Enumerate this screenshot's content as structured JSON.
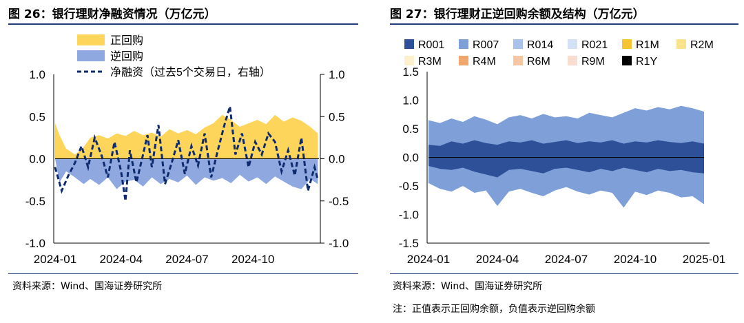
{
  "left": {
    "title": "图 26：银行理财净融资情况（万亿元）",
    "source": "资料来源：Wind、国海证券研究所",
    "legend": [
      "正回购",
      "逆回购",
      "净融资（过去5个交易日，右轴）"
    ],
    "colors": {
      "repo": "#fdd55a",
      "reverse": "#8fa8e0",
      "net": "#0d2b6e"
    },
    "chart_data": {
      "type": "area",
      "x_ticks": [
        "2024-01",
        "2024-04",
        "2024-07",
        "2024-10"
      ],
      "y_ticks": [
        "1.0",
        "0.5",
        "0.0",
        "-0.5",
        "-1.0"
      ],
      "y2_ticks": [
        "1.0",
        "0.5",
        "0.0",
        "-0.5",
        "-1.0"
      ],
      "ylim": [
        -1.0,
        1.0
      ],
      "x_range": [
        0,
        12
      ],
      "series": [
        {
          "name": "正回购",
          "type": "area",
          "x": [
            0,
            0.2,
            0.5,
            0.9,
            1.3,
            1.6,
            2.0,
            2.4,
            2.8,
            3.2,
            3.6,
            4.0,
            4.4,
            4.8,
            5.2,
            5.6,
            6.0,
            6.4,
            6.8,
            7.2,
            7.6,
            8.0,
            8.4,
            8.8,
            9.2,
            9.6,
            10.0,
            10.4,
            10.8,
            11.2,
            11.6,
            11.95
          ],
          "y": [
            0.42,
            0.28,
            0.12,
            0.05,
            0.14,
            0.25,
            0.28,
            0.24,
            0.3,
            0.27,
            0.33,
            0.28,
            0.31,
            0.26,
            0.35,
            0.3,
            0.34,
            0.29,
            0.37,
            0.42,
            0.52,
            0.46,
            0.38,
            0.42,
            0.46,
            0.41,
            0.52,
            0.44,
            0.49,
            0.45,
            0.38,
            0.3
          ]
        },
        {
          "name": "逆回购",
          "type": "area",
          "x": [
            0,
            0.2,
            0.5,
            0.9,
            1.3,
            1.6,
            2.0,
            2.4,
            2.8,
            3.2,
            3.6,
            4.0,
            4.4,
            4.8,
            5.2,
            5.6,
            6.0,
            6.4,
            6.8,
            7.2,
            7.6,
            8.0,
            8.4,
            8.8,
            9.2,
            9.6,
            10.0,
            10.4,
            10.8,
            11.2,
            11.6,
            11.95
          ],
          "y": [
            0.0,
            -0.28,
            -0.15,
            -0.22,
            -0.3,
            -0.24,
            -0.31,
            -0.22,
            -0.36,
            -0.27,
            -0.25,
            -0.33,
            -0.22,
            -0.3,
            -0.24,
            -0.28,
            -0.2,
            -0.31,
            -0.22,
            -0.26,
            -0.23,
            -0.29,
            -0.19,
            -0.27,
            -0.22,
            -0.3,
            -0.21,
            -0.27,
            -0.33,
            -0.36,
            -0.24,
            -0.3
          ]
        },
        {
          "name": "净融资（过去5个交易日，右轴）",
          "type": "line",
          "axis": "right",
          "x": [
            0,
            0.3,
            0.6,
            0.9,
            1.2,
            1.5,
            1.8,
            2.1,
            2.4,
            2.7,
            3.0,
            3.2,
            3.4,
            3.7,
            4.0,
            4.2,
            4.4,
            4.7,
            5.0,
            5.3,
            5.6,
            5.9,
            6.2,
            6.5,
            6.8,
            7.1,
            7.4,
            7.7,
            7.95,
            8.2,
            8.5,
            8.8,
            9.1,
            9.4,
            9.7,
            10.0,
            10.3,
            10.6,
            10.9,
            11.2,
            11.5,
            11.8,
            11.95
          ],
          "y": [
            -0.1,
            -0.38,
            -0.2,
            -0.05,
            0.15,
            -0.1,
            0.25,
            0.05,
            -0.22,
            0.2,
            -0.15,
            -0.5,
            0.1,
            -0.28,
            0.05,
            0.28,
            -0.1,
            0.4,
            -0.3,
            -0.05,
            0.22,
            -0.18,
            0.15,
            -0.08,
            0.3,
            -0.22,
            0.1,
            0.4,
            0.62,
            0.05,
            0.3,
            -0.1,
            0.2,
            0.05,
            0.3,
            0.2,
            -0.15,
            0.1,
            -0.2,
            0.25,
            -0.38,
            -0.1,
            -0.25
          ]
        }
      ]
    }
  },
  "right": {
    "title": "图 27：银行理财正逆回购余额及结构（万亿元）",
    "source": "资料来源：Wind、国海证券研究所",
    "note": "注：正值表示正回购余额，负值表示逆回购余额",
    "legend": [
      "R001",
      "R007",
      "R014",
      "R021",
      "R1M",
      "R2M",
      "R3M",
      "R4M",
      "R6M",
      "R9M",
      "R1Y"
    ],
    "legend_colors": [
      "#2e5099",
      "#7f9fd8",
      "#a9c0e8",
      "#d3e0f5",
      "#f4c530",
      "#fbe38e",
      "#fdf0cc",
      "#f2a56c",
      "#f7c6a3",
      "#f9ded0",
      "#000000"
    ],
    "chart_data": {
      "type": "area",
      "x_ticks": [
        "2024-01",
        "2024-04",
        "2024-07",
        "2024-10",
        "2025-01"
      ],
      "y_ticks": [
        "1.5",
        "1.0",
        "0.5",
        "0.0",
        "-0.5",
        "-1.0",
        "-1.5"
      ],
      "ylim": [
        -1.5,
        1.5
      ],
      "x_range": [
        0,
        12
      ],
      "series": [
        {
          "name": "R001 正回购",
          "x": [
            0,
            0.5,
            1,
            1.5,
            2,
            2.5,
            3,
            3.5,
            4,
            4.5,
            5,
            5.5,
            6,
            6.5,
            7,
            7.5,
            8,
            8.5,
            9,
            9.5,
            10,
            10.5,
            11,
            11.5,
            12
          ],
          "y": [
            0.22,
            0.2,
            0.28,
            0.24,
            0.3,
            0.25,
            0.22,
            0.28,
            0.26,
            0.3,
            0.24,
            0.27,
            0.3,
            0.25,
            0.28,
            0.26,
            0.3,
            0.24,
            0.28,
            0.26,
            0.3,
            0.27,
            0.25,
            0.28,
            0.24
          ]
        },
        {
          "name": "R007 正回购",
          "x": [
            0,
            0.5,
            1,
            1.5,
            2,
            2.5,
            3,
            3.5,
            4,
            4.5,
            5,
            5.5,
            6,
            6.5,
            7,
            7.5,
            8,
            8.5,
            9,
            9.5,
            10,
            10.5,
            11,
            11.5,
            12
          ],
          "y": [
            0.65,
            0.6,
            0.68,
            0.62,
            0.72,
            0.66,
            0.58,
            0.7,
            0.74,
            0.68,
            0.76,
            0.7,
            0.72,
            0.68,
            0.78,
            0.74,
            0.7,
            0.78,
            0.86,
            0.82,
            0.88,
            0.84,
            0.9,
            0.86,
            0.8
          ]
        },
        {
          "name": "R001 逆回购",
          "x": [
            0,
            0.5,
            1,
            1.5,
            2,
            2.5,
            3,
            3.5,
            4,
            4.5,
            5,
            5.5,
            6,
            6.5,
            7,
            7.5,
            8,
            8.5,
            9,
            9.5,
            10,
            10.5,
            11,
            11.5,
            12
          ],
          "y": [
            -0.15,
            -0.2,
            -0.22,
            -0.18,
            -0.25,
            -0.3,
            -0.35,
            -0.22,
            -0.2,
            -0.24,
            -0.28,
            -0.2,
            -0.18,
            -0.22,
            -0.26,
            -0.2,
            -0.24,
            -0.18,
            -0.22,
            -0.26,
            -0.2,
            -0.24,
            -0.22,
            -0.26,
            -0.28
          ]
        },
        {
          "name": "R007 逆回购",
          "x": [
            0,
            0.5,
            1,
            1.5,
            2,
            2.5,
            3,
            3.5,
            4,
            4.5,
            5,
            5.5,
            6,
            6.5,
            7,
            7.5,
            8,
            8.5,
            9,
            9.5,
            10,
            10.5,
            11,
            11.5,
            12
          ],
          "y": [
            -0.45,
            -0.55,
            -0.6,
            -0.5,
            -0.62,
            -0.58,
            -0.85,
            -0.6,
            -0.55,
            -0.62,
            -0.68,
            -0.58,
            -0.52,
            -0.6,
            -0.65,
            -0.58,
            -0.62,
            -0.88,
            -0.6,
            -0.66,
            -0.58,
            -0.62,
            -0.7,
            -0.68,
            -0.82
          ]
        }
      ]
    }
  }
}
